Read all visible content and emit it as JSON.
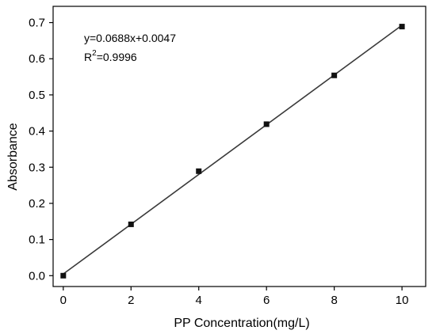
{
  "chart_data": {
    "type": "scatter",
    "xlabel": "PP Concentration(mg/L)",
    "ylabel": "Absorbance",
    "xlim": [
      -0.3,
      10.7
    ],
    "ylim": [
      -0.03,
      0.745
    ],
    "xticks": [
      0,
      2,
      4,
      6,
      8,
      10
    ],
    "yticks": [
      0.0,
      0.1,
      0.2,
      0.3,
      0.4,
      0.5,
      0.6,
      0.7
    ],
    "x_tick_labels": [
      "0",
      "2",
      "4",
      "6",
      "8",
      "10"
    ],
    "y_tick_labels": [
      "0.0",
      "0.1",
      "0.2",
      "0.3",
      "0.4",
      "0.5",
      "0.6",
      "0.7"
    ],
    "series": [
      {
        "x": [
          0,
          2,
          4,
          6,
          8,
          10
        ],
        "y": [
          0.0,
          0.142,
          0.289,
          0.419,
          0.554,
          0.689
        ],
        "color": "#111111"
      }
    ],
    "fit": {
      "slope": 0.0688,
      "intercept": 0.0047,
      "x_range": [
        0,
        10
      ],
      "color": "#3a3a3a"
    },
    "annotations": {
      "equation": "y=0.0688x+0.0047",
      "r2_prefix": "R",
      "r2_sup": "2",
      "r2_value": "=0.9996"
    },
    "grid": false,
    "legend": "none"
  }
}
